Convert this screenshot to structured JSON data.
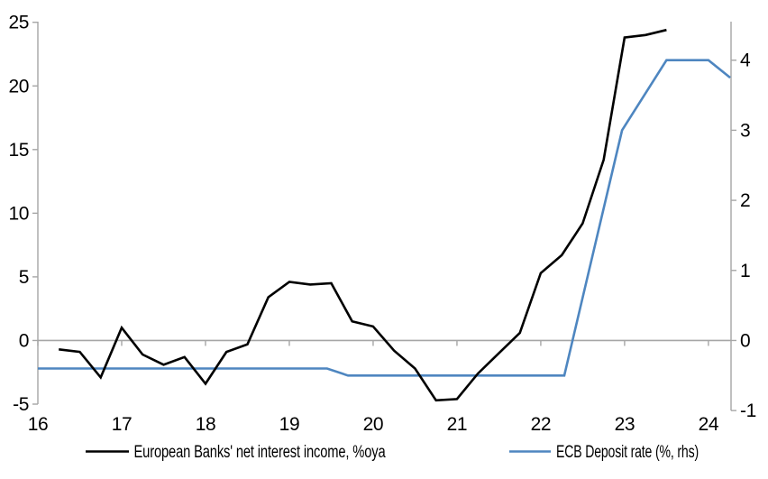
{
  "colors": {
    "background": "#ffffff",
    "axis": "#a6a6a6",
    "zero_line": "#a6a6a6",
    "text": "#000000",
    "nii_line": "#000000",
    "ecb_line": "#4e86c0"
  },
  "chart_data": {
    "type": "line",
    "title": "",
    "legend_position": "bottom-center",
    "grid": "zero-line-only",
    "x_axis": {
      "tick_labels": [
        "16",
        "17",
        "18",
        "19",
        "20",
        "21",
        "22",
        "23",
        "24"
      ],
      "tick_values": [
        16,
        17,
        18,
        19,
        20,
        21,
        22,
        23,
        24
      ],
      "range": [
        16,
        24.27
      ]
    },
    "left_axis": {
      "tick_labels": [
        "-5",
        "0",
        "5",
        "10",
        "15",
        "20",
        "25"
      ],
      "tick_values": [
        -5,
        0,
        5,
        10,
        15,
        20,
        25
      ],
      "range": [
        -5,
        25.05
      ]
    },
    "right_axis": {
      "tick_labels": [
        "-1",
        "0",
        "1",
        "2",
        "3",
        "4"
      ],
      "tick_values": [
        -1,
        0,
        1,
        2,
        3,
        4
      ],
      "range": [
        -1.05,
        4.55
      ]
    },
    "series": [
      {
        "name": "European Banks' net interest income, %oya",
        "axis": "left",
        "color": "#000000",
        "x": [
          16.25,
          16.5,
          16.75,
          17.0,
          17.25,
          17.5,
          17.75,
          18.0,
          18.25,
          18.5,
          18.75,
          19.0,
          19.25,
          19.5,
          19.75,
          20.0,
          20.25,
          20.5,
          20.75,
          21.0,
          21.25,
          21.5,
          21.75,
          22.0,
          22.25,
          22.5,
          22.75,
          23.0,
          23.25,
          23.5
        ],
        "y": [
          -0.7,
          -0.9,
          -2.9,
          1.0,
          -1.1,
          -1.9,
          -1.3,
          -3.4,
          -0.9,
          -0.3,
          3.4,
          4.6,
          4.4,
          4.5,
          1.5,
          1.1,
          -0.8,
          -2.2,
          -4.7,
          -4.6,
          -2.6,
          -1.0,
          0.6,
          5.3,
          6.7,
          9.2,
          14.2,
          23.8,
          24.0,
          24.4
        ]
      },
      {
        "name": "ECB Deposit rate (%, rhs)",
        "axis": "right",
        "color": "#4e86c0",
        "x": [
          16.0,
          19.45,
          19.7,
          22.28,
          22.97,
          23.5,
          24.0,
          24.26
        ],
        "y": [
          -0.4,
          -0.4,
          -0.5,
          -0.5,
          3.0,
          4.0,
          4.0,
          3.75
        ]
      }
    ]
  }
}
